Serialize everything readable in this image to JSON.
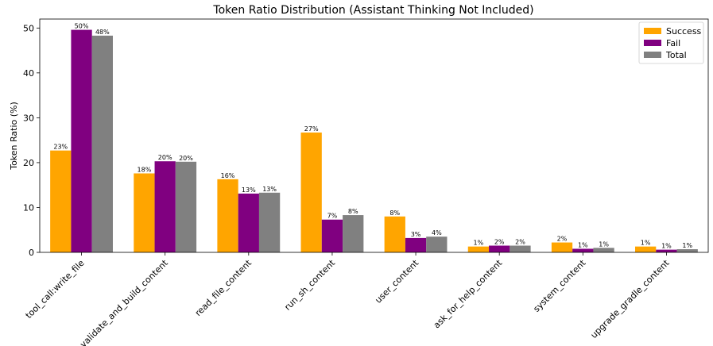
{
  "chart_data": {
    "type": "bar",
    "title": "Token Ratio Distribution (Assistant Thinking Not Included)",
    "xlabel": "",
    "ylabel": "Token Ratio (%)",
    "ylim": [
      0,
      52
    ],
    "yticks": [
      0,
      10,
      20,
      30,
      40,
      50
    ],
    "grid": false,
    "legend_position": "top-right",
    "categories": [
      "tool_call:write_file",
      "validate_and_build_content",
      "read_file_content",
      "run_sh_content",
      "user_content",
      "ask_for_help_content",
      "system_content",
      "upgrade_gradle_content"
    ],
    "series": [
      {
        "name": "Success",
        "color": "#FFA500",
        "values": [
          22.7,
          17.6,
          16.3,
          26.7,
          8.0,
          1.3,
          2.2,
          1.3
        ],
        "labels": [
          "23%",
          "18%",
          "16%",
          "27%",
          "8%",
          "1%",
          "2%",
          "1%"
        ]
      },
      {
        "name": "Fail",
        "color": "#800080",
        "values": [
          49.6,
          20.3,
          13.1,
          7.3,
          3.2,
          1.5,
          0.8,
          0.6
        ],
        "labels": [
          "50%",
          "20%",
          "13%",
          "7%",
          "3%",
          "2%",
          "1%",
          "1%"
        ]
      },
      {
        "name": "Total",
        "color": "#808080",
        "values": [
          48.3,
          20.2,
          13.3,
          8.3,
          3.5,
          1.5,
          1.0,
          0.7
        ],
        "labels": [
          "48%",
          "20%",
          "13%",
          "8%",
          "4%",
          "2%",
          "1%",
          "1%"
        ]
      }
    ]
  }
}
